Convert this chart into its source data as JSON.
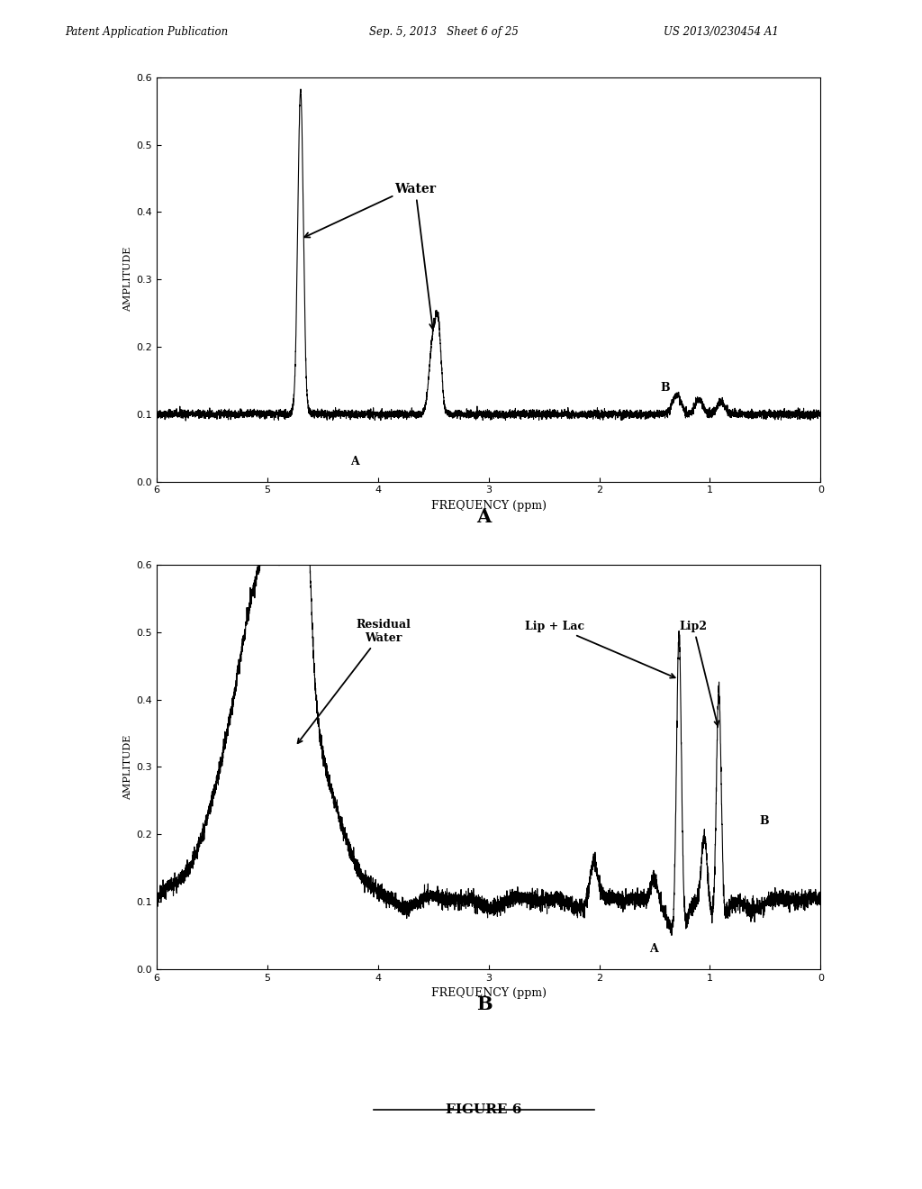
{
  "header_left": "Patent Application Publication",
  "header_middle": "Sep. 5, 2013   Sheet 6 of 25",
  "header_right": "US 2013/0230454 A1",
  "figure_label": "FIGURE 6",
  "xlabel": "FREQUENCY (ppm)",
  "ylabel": "AMPLITUDE",
  "xlim": [
    6,
    0
  ],
  "ylim": [
    0,
    0.6
  ],
  "yticks": [
    0,
    0.1,
    0.2,
    0.3,
    0.4,
    0.5,
    0.6
  ],
  "xticks": [
    6,
    5,
    4,
    3,
    2,
    1,
    0
  ],
  "background_color": "#ffffff",
  "line_color": "#000000",
  "noise_seed_A": 42,
  "noise_seed_B": 99
}
